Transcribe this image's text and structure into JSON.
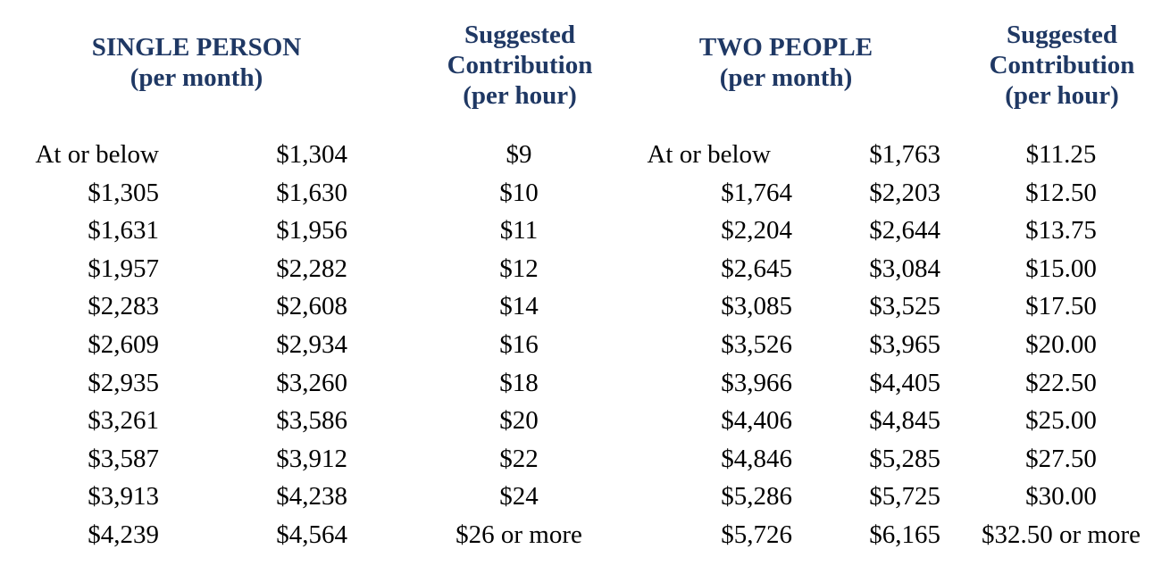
{
  "page": {
    "background_color": "#ffffff",
    "header_text_color": "#1f3864",
    "body_text_color": "#000000"
  },
  "table": {
    "headers": [
      {
        "id": "single-person",
        "lines": [
          "SINGLE PERSON",
          "(per month)"
        ]
      },
      {
        "id": "suggested-contribution-single",
        "lines": [
          "Suggested",
          "Contribution",
          "(per hour)"
        ]
      },
      {
        "id": "two-people",
        "lines": [
          "TWO PEOPLE",
          "(per month)"
        ]
      },
      {
        "id": "suggested-contribution-two",
        "lines": [
          "Suggested",
          "Contribution",
          "(per hour)"
        ]
      }
    ],
    "columns": {
      "single_from": [
        "At or below",
        "$1,305",
        "$1,631",
        "$1,957",
        "$2,283",
        "$2,609",
        "$2,935",
        "$3,261",
        "$3,587",
        "$3,913",
        "$4,239"
      ],
      "single_to": [
        "$1,304",
        "$1,630",
        "$1,956",
        "$2,282",
        "$2,608",
        "$2,934",
        "$3,260",
        "$3,586",
        "$3,912",
        "$4,238",
        "$4,564"
      ],
      "single_contribution": [
        "$9",
        "$10",
        "$11",
        "$12",
        "$14",
        "$16",
        "$18",
        "$20",
        "$22",
        "$24",
        "$26 or more"
      ],
      "two_from": [
        "At or below",
        "$1,764",
        "$2,204",
        "$2,645",
        "$3,085",
        "$3,526",
        "$3,966",
        "$4,406",
        "$4,846",
        "$5,286",
        "$5,726"
      ],
      "two_to": [
        "$1,763",
        "$2,203",
        "$2,644",
        "$3,084",
        "$3,525",
        "$3,965",
        "$4,405",
        "$4,845",
        "$5,285",
        "$5,725",
        "$6,165"
      ],
      "two_contribution": [
        "$11.25",
        "$12.50",
        "$13.75",
        "$15.00",
        "$17.50",
        "$20.00",
        "$22.50",
        "$25.00",
        "$27.50",
        "$30.00",
        "$32.50 or more"
      ]
    }
  }
}
